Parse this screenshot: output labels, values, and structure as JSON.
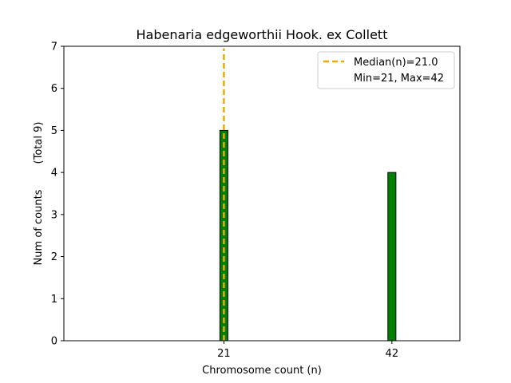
{
  "chart_data": {
    "type": "bar",
    "title": "Habenaria edgeworthii Hook. ex Collett",
    "xlabel": "Chromosome count (n)",
    "ylabel": "Num of counts",
    "ylabel_extra": "(Total 9)",
    "categories": [
      21,
      42
    ],
    "x_ticks": [
      21,
      42
    ],
    "values": [
      5,
      4
    ],
    "xlim": [
      1.0,
      50.5
    ],
    "ylim": [
      0,
      7
    ],
    "y_ticks": [
      0,
      1,
      2,
      3,
      4,
      5,
      6,
      7
    ],
    "bar_width": 1.0,
    "bar_color": "#008000",
    "bar_edge_color": "#000000",
    "median_line": {
      "x": 21,
      "label": "Median(n)=21.0",
      "color": "#f2a900"
    },
    "extra_legend": "Min=21, Max=42",
    "grid": false,
    "legend_position": "top-right"
  }
}
